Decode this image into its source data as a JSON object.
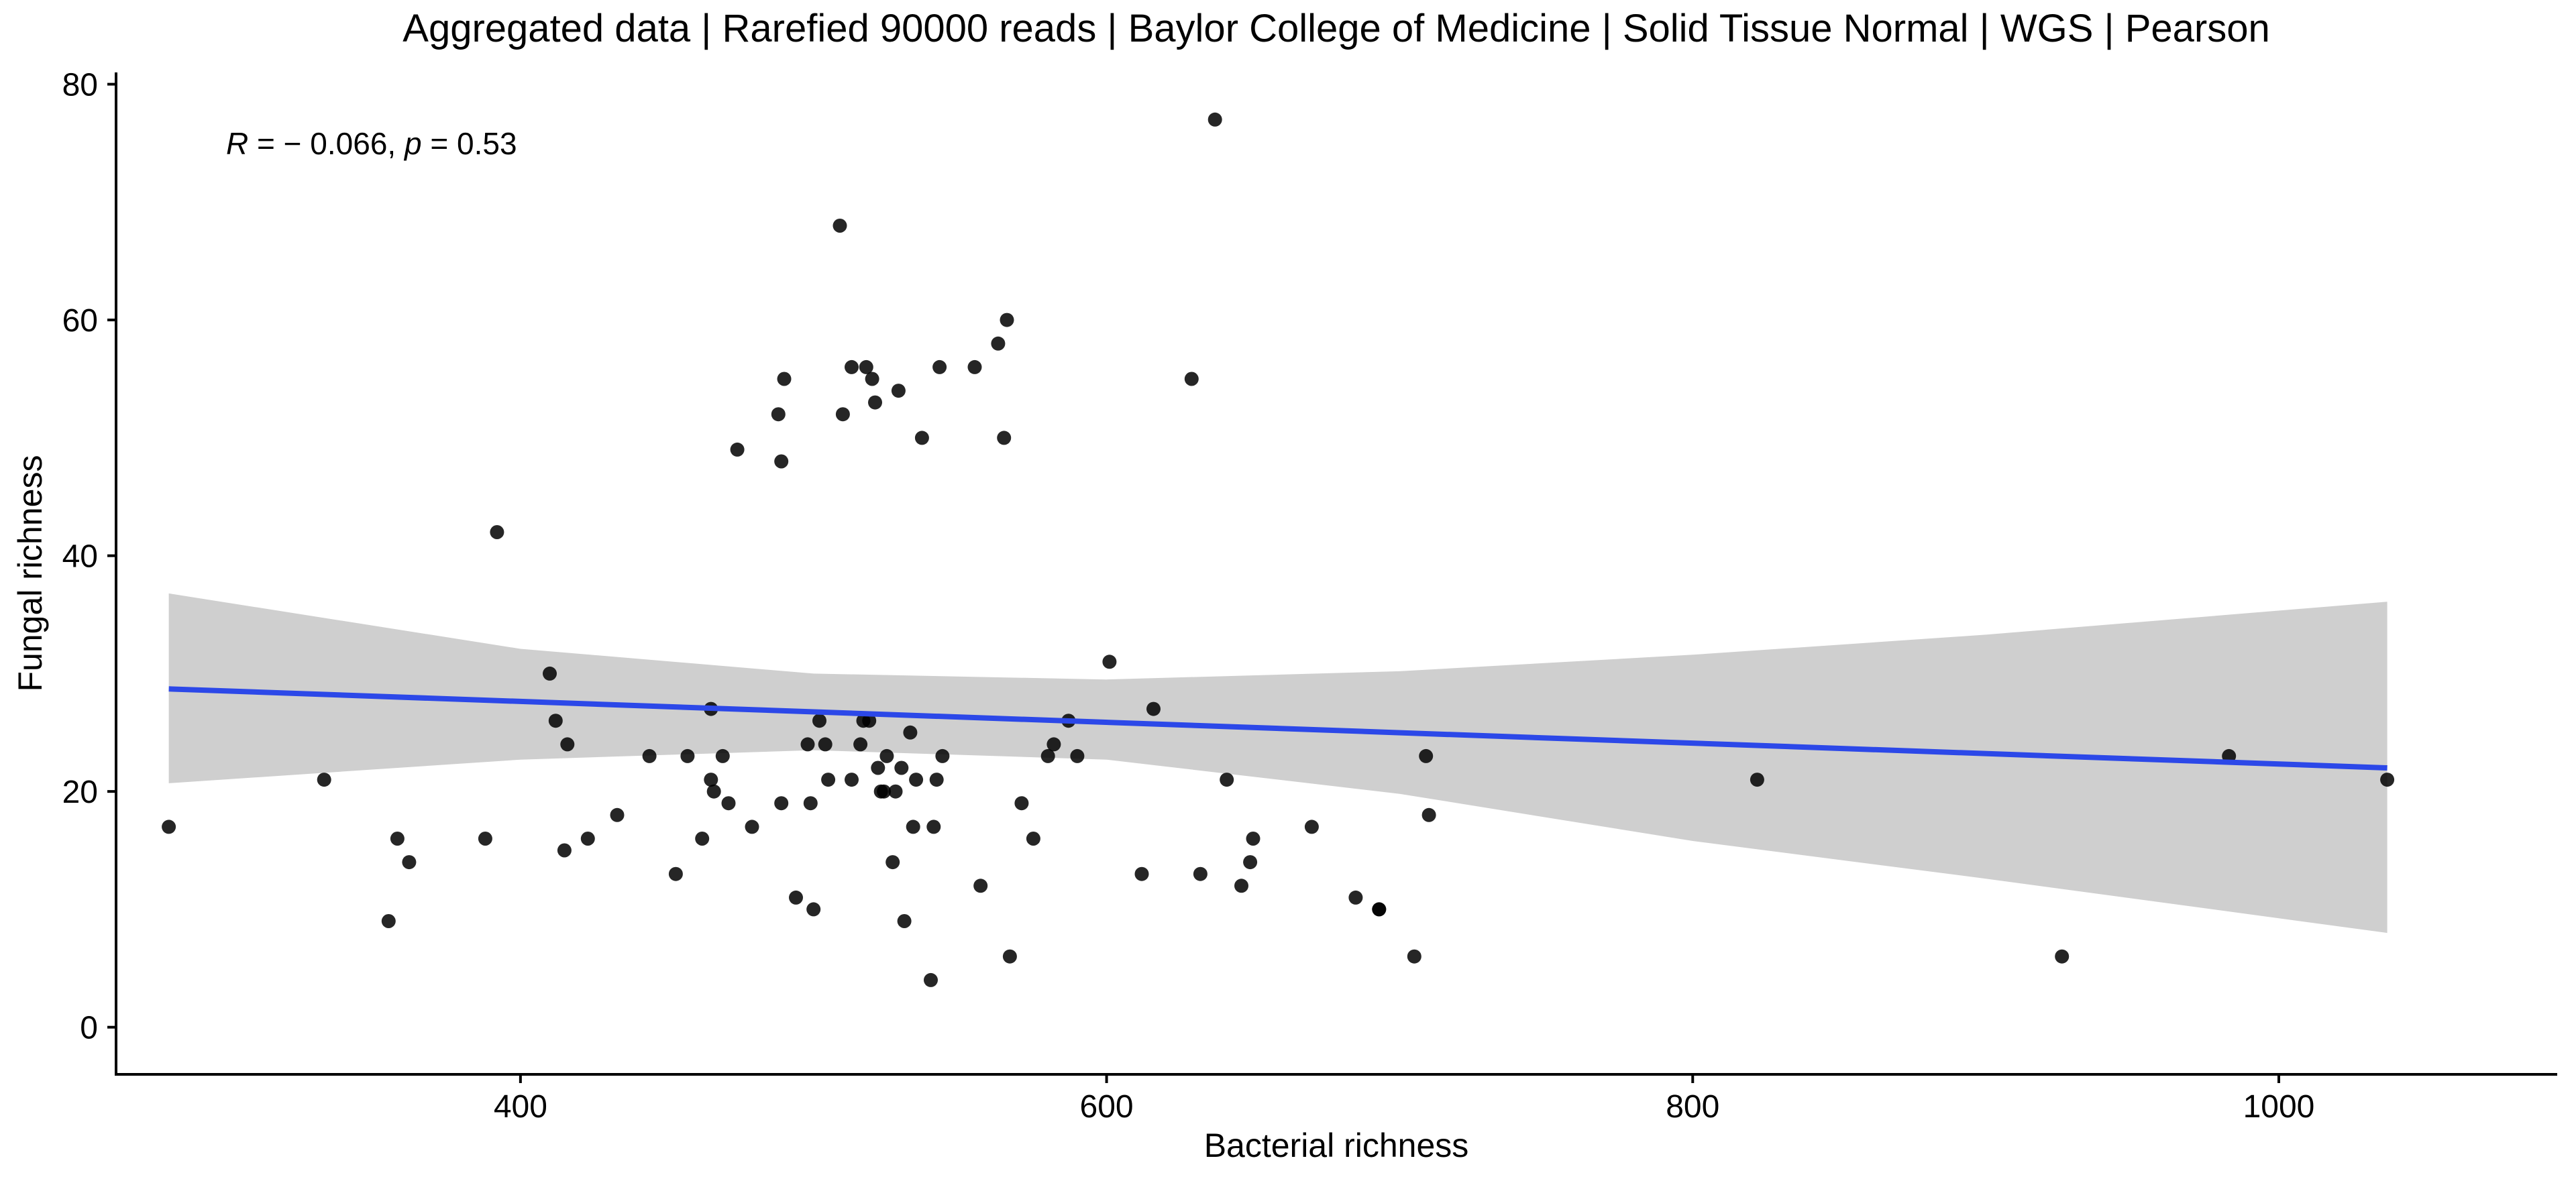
{
  "chart_data": {
    "type": "scatter",
    "title": "Aggregated data | Rarefied 90000 reads | Baylor College of Medicine | Solid Tissue Normal | WGS | Pearson",
    "xlabel": "Bacterial richness",
    "ylabel": "Fungal richness",
    "xlim": [
      262,
      1095
    ],
    "ylim": [
      -4,
      81
    ],
    "xticks": [
      400,
      600,
      800,
      1000
    ],
    "yticks": [
      0,
      20,
      40,
      60,
      80
    ],
    "grid": false,
    "legend": "none",
    "annotation": {
      "r_symbol": "R",
      "r_text": " = − 0.066, ",
      "p_symbol": "p",
      "p_text": " = 0.53"
    },
    "colors": {
      "points": "#000000",
      "fit_line": "#2C48E8",
      "ci_band": "#CFCFCF"
    },
    "points": {
      "x": [
        280,
        333,
        355,
        358,
        362,
        388,
        392,
        410,
        412,
        415,
        416,
        423,
        433,
        444,
        453,
        457,
        462,
        465,
        465,
        466,
        469,
        471,
        474,
        479,
        488,
        489,
        489,
        490,
        494,
        498,
        499,
        500,
        502,
        504,
        505,
        509,
        510,
        513,
        513,
        516,
        517,
        518,
        519,
        520,
        521,
        522,
        523,
        524,
        525,
        527,
        528,
        529,
        530,
        531,
        533,
        534,
        535,
        537,
        540,
        541,
        542,
        543,
        544,
        555,
        557,
        563,
        565,
        566,
        567,
        571,
        575,
        580,
        582,
        587,
        590,
        601,
        612,
        616,
        629,
        632,
        637,
        641,
        646,
        649,
        650,
        670,
        685,
        693,
        693,
        705,
        709,
        710,
        822,
        926,
        983,
        1037
      ],
      "y": [
        17,
        21,
        9,
        16,
        14,
        16,
        42,
        30,
        26,
        15,
        24,
        16,
        18,
        23,
        13,
        23,
        16,
        27,
        21,
        20,
        23,
        19,
        49,
        17,
        52,
        19,
        48,
        55,
        11,
        24,
        19,
        10,
        26,
        24,
        21,
        68,
        52,
        21,
        56,
        24,
        26,
        56,
        26,
        55,
        53,
        22,
        20,
        20,
        23,
        14,
        20,
        54,
        22,
        9,
        25,
        17,
        21,
        50,
        4,
        17,
        21,
        56,
        23,
        56,
        12,
        58,
        50,
        60,
        6,
        19,
        16,
        23,
        24,
        26,
        23,
        31,
        13,
        27,
        55,
        13,
        77,
        21,
        12,
        14,
        16,
        17,
        11,
        10,
        10,
        6,
        23,
        18,
        21,
        6,
        23,
        21
      ]
    },
    "fit": {
      "x": [
        280,
        1037
      ],
      "y": [
        28.7,
        22.0
      ]
    },
    "ci_band": {
      "x": [
        280,
        400,
        500,
        600,
        700,
        800,
        900,
        1037
      ],
      "upper": [
        36.8,
        32.1,
        30.0,
        29.5,
        30.2,
        31.6,
        33.3,
        36.1
      ],
      "lower": [
        20.7,
        22.7,
        23.5,
        22.7,
        19.8,
        15.8,
        12.6,
        8.0
      ]
    }
  }
}
